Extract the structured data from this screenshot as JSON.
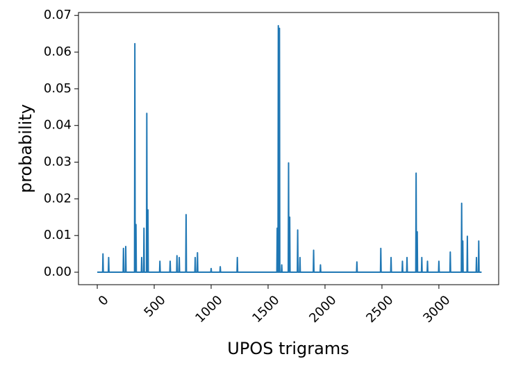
{
  "chart_data": {
    "type": "line",
    "xlabel": "UPOS trigrams",
    "ylabel": "probability",
    "x": [
      0,
      47,
      50,
      53,
      97,
      100,
      103,
      227,
      230,
      233,
      247,
      250,
      253,
      327,
      330,
      333,
      337,
      340,
      343,
      387,
      390,
      393,
      407,
      410,
      413,
      432,
      435,
      438,
      442,
      445,
      448,
      547,
      550,
      553,
      637,
      640,
      643,
      697,
      700,
      703,
      717,
      720,
      723,
      777,
      780,
      783,
      857,
      860,
      863,
      877,
      880,
      883,
      997,
      1000,
      1003,
      1077,
      1080,
      1083,
      1227,
      1230,
      1233,
      1577,
      1580,
      1583,
      1587,
      1590,
      1593,
      1597,
      1600,
      1603,
      1617,
      1620,
      1623,
      1677,
      1680,
      1683,
      1687,
      1690,
      1693,
      1757,
      1760,
      1763,
      1777,
      1780,
      1783,
      1897,
      1900,
      1903,
      1957,
      1960,
      1963,
      2277,
      2280,
      2283,
      2487,
      2490,
      2493,
      2577,
      2580,
      2583,
      2677,
      2680,
      2683,
      2717,
      2720,
      2723,
      2797,
      2800,
      2803,
      2807,
      2810,
      2813,
      2847,
      2850,
      2853,
      2897,
      2900,
      2903,
      2997,
      3000,
      3003,
      3097,
      3100,
      3103,
      3197,
      3200,
      3203,
      3207,
      3210,
      3213,
      3247,
      3250,
      3253,
      3327,
      3330,
      3333,
      3347,
      3350,
      3353,
      3375
    ],
    "series": [
      {
        "name": "probability",
        "color": "#1f77b4",
        "values": [
          0,
          0,
          0.005,
          0,
          0,
          0.004,
          0,
          0,
          0.0065,
          0,
          0,
          0.007,
          0,
          0,
          0.0623,
          0,
          0,
          0.013,
          0,
          0,
          0.004,
          0,
          0,
          0.012,
          0,
          0,
          0.0433,
          0,
          0,
          0.017,
          0,
          0,
          0.003,
          0,
          0,
          0.003,
          0,
          0,
          0.0045,
          0,
          0,
          0.004,
          0,
          0,
          0.0157,
          0,
          0,
          0.004,
          0,
          0,
          0.0053,
          0,
          0,
          0.001,
          0,
          0,
          0.0015,
          0,
          0,
          0.004,
          0,
          0,
          0.012,
          0,
          0,
          0.0672,
          0,
          0,
          0.0665,
          0,
          0,
          0.002,
          0,
          0,
          0.0298,
          0,
          0,
          0.015,
          0,
          0,
          0.0115,
          0,
          0,
          0.004,
          0,
          0,
          0.006,
          0,
          0,
          0.002,
          0,
          0,
          0.0028,
          0,
          0,
          0.0065,
          0,
          0,
          0.004,
          0,
          0,
          0.003,
          0,
          0,
          0.004,
          0,
          0,
          0.027,
          0,
          0,
          0.011,
          0,
          0,
          0.004,
          0,
          0,
          0.003,
          0,
          0,
          0.003,
          0,
          0,
          0.0055,
          0,
          0,
          0.0188,
          0,
          0,
          0.0085,
          0,
          0,
          0.0098,
          0,
          0,
          0.004,
          0,
          0,
          0.0085,
          0,
          0
        ]
      }
    ],
    "xlim": [
      -165,
      3525
    ],
    "ylim": [
      -0.0034,
      0.0708
    ],
    "xticks": [
      0,
      500,
      1000,
      1500,
      2000,
      2500,
      3000
    ],
    "yticks": [
      {
        "value": 0,
        "label": "0.00"
      },
      {
        "value": 0.01,
        "label": "0.01"
      },
      {
        "value": 0.02,
        "label": "0.02"
      },
      {
        "value": 0.03,
        "label": "0.03"
      },
      {
        "value": 0.04,
        "label": "0.04"
      },
      {
        "value": 0.05,
        "label": "0.05"
      },
      {
        "value": 0.06,
        "label": "0.06"
      },
      {
        "value": 0.07,
        "label": "0.07"
      }
    ],
    "grid": false
  }
}
